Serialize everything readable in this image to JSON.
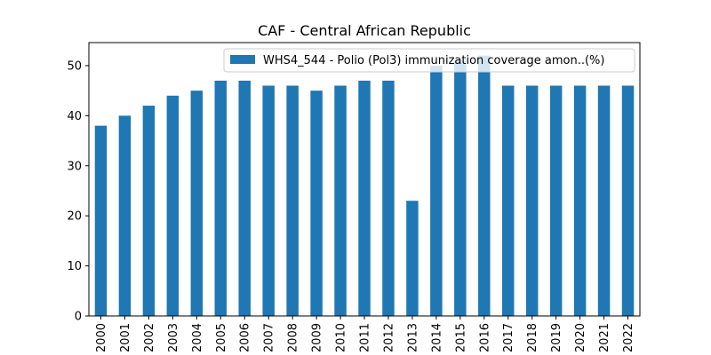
{
  "chart_data": {
    "type": "bar",
    "title": "CAF - Central African Republic",
    "xlabel": "",
    "ylabel": "",
    "categories": [
      "2000",
      "2001",
      "2002",
      "2003",
      "2004",
      "2005",
      "2006",
      "2007",
      "2008",
      "2009",
      "2010",
      "2011",
      "2012",
      "2013",
      "2014",
      "2015",
      "2016",
      "2017",
      "2018",
      "2019",
      "2020",
      "2021",
      "2022"
    ],
    "series": [
      {
        "name": "WHS4_544 - Polio (Pol3) immunization coverage amon..(%)",
        "values": [
          38,
          40,
          42,
          44,
          45,
          47,
          47,
          46,
          46,
          45,
          46,
          47,
          47,
          23,
          50,
          51,
          52,
          46,
          46,
          46,
          46,
          46,
          46
        ],
        "color": "#1f77b4"
      }
    ],
    "ylim": [
      0,
      54.6
    ],
    "yticks": [
      0,
      10,
      20,
      30,
      40,
      50
    ],
    "grid": false,
    "legend_position": "top-right"
  }
}
